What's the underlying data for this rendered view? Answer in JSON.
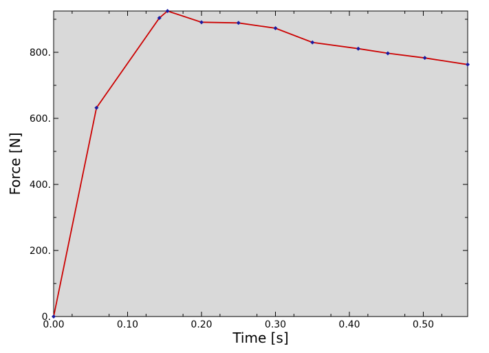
{
  "chart_data": {
    "type": "line",
    "xlabel": "Time [s]",
    "ylabel": "Force [N]",
    "xlim": [
      0,
      0.56
    ],
    "ylim": [
      0,
      925
    ],
    "x_ticks": [
      0,
      0.1,
      0.2,
      0.3,
      0.4,
      0.5
    ],
    "x_tick_labels": [
      "0.00",
      "0.10",
      "0.20",
      "0.30",
      "0.40",
      "0.50"
    ],
    "y_ticks": [
      0,
      200,
      400,
      600,
      800
    ],
    "y_tick_labels": [
      "0.",
      "200.",
      "400.",
      "600.",
      "800."
    ],
    "grid": false,
    "series": [
      {
        "line_color": "#cc0000",
        "marker_color": "#1a1aa0",
        "x": [
          0.0,
          0.058,
          0.143,
          0.154,
          0.2,
          0.25,
          0.3,
          0.35,
          0.412,
          0.452,
          0.502,
          0.56
        ],
        "y": [
          0,
          632,
          904,
          925,
          891,
          889,
          873,
          830,
          811,
          797,
          783,
          763
        ]
      }
    ],
    "plot_background": "#d9d9d9"
  }
}
